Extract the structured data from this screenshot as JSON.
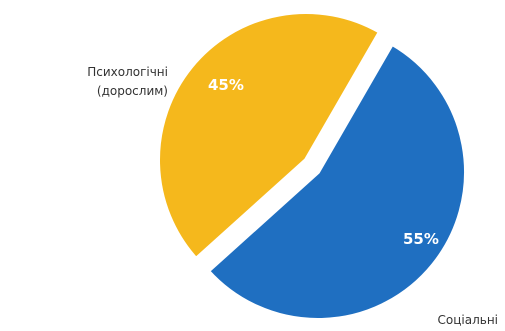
{
  "chart_data": {
    "type": "pie",
    "title": "",
    "slices": [
      {
        "label_lines": [
          "Психологічні",
          "(дорослим)"
        ],
        "value": 45,
        "value_label": "45%",
        "color": "#F5B81C"
      },
      {
        "label_lines": [
          "Соціальні"
        ],
        "value": 55,
        "value_label": "55%",
        "color": "#1F6FC1"
      }
    ],
    "legend": "none"
  }
}
